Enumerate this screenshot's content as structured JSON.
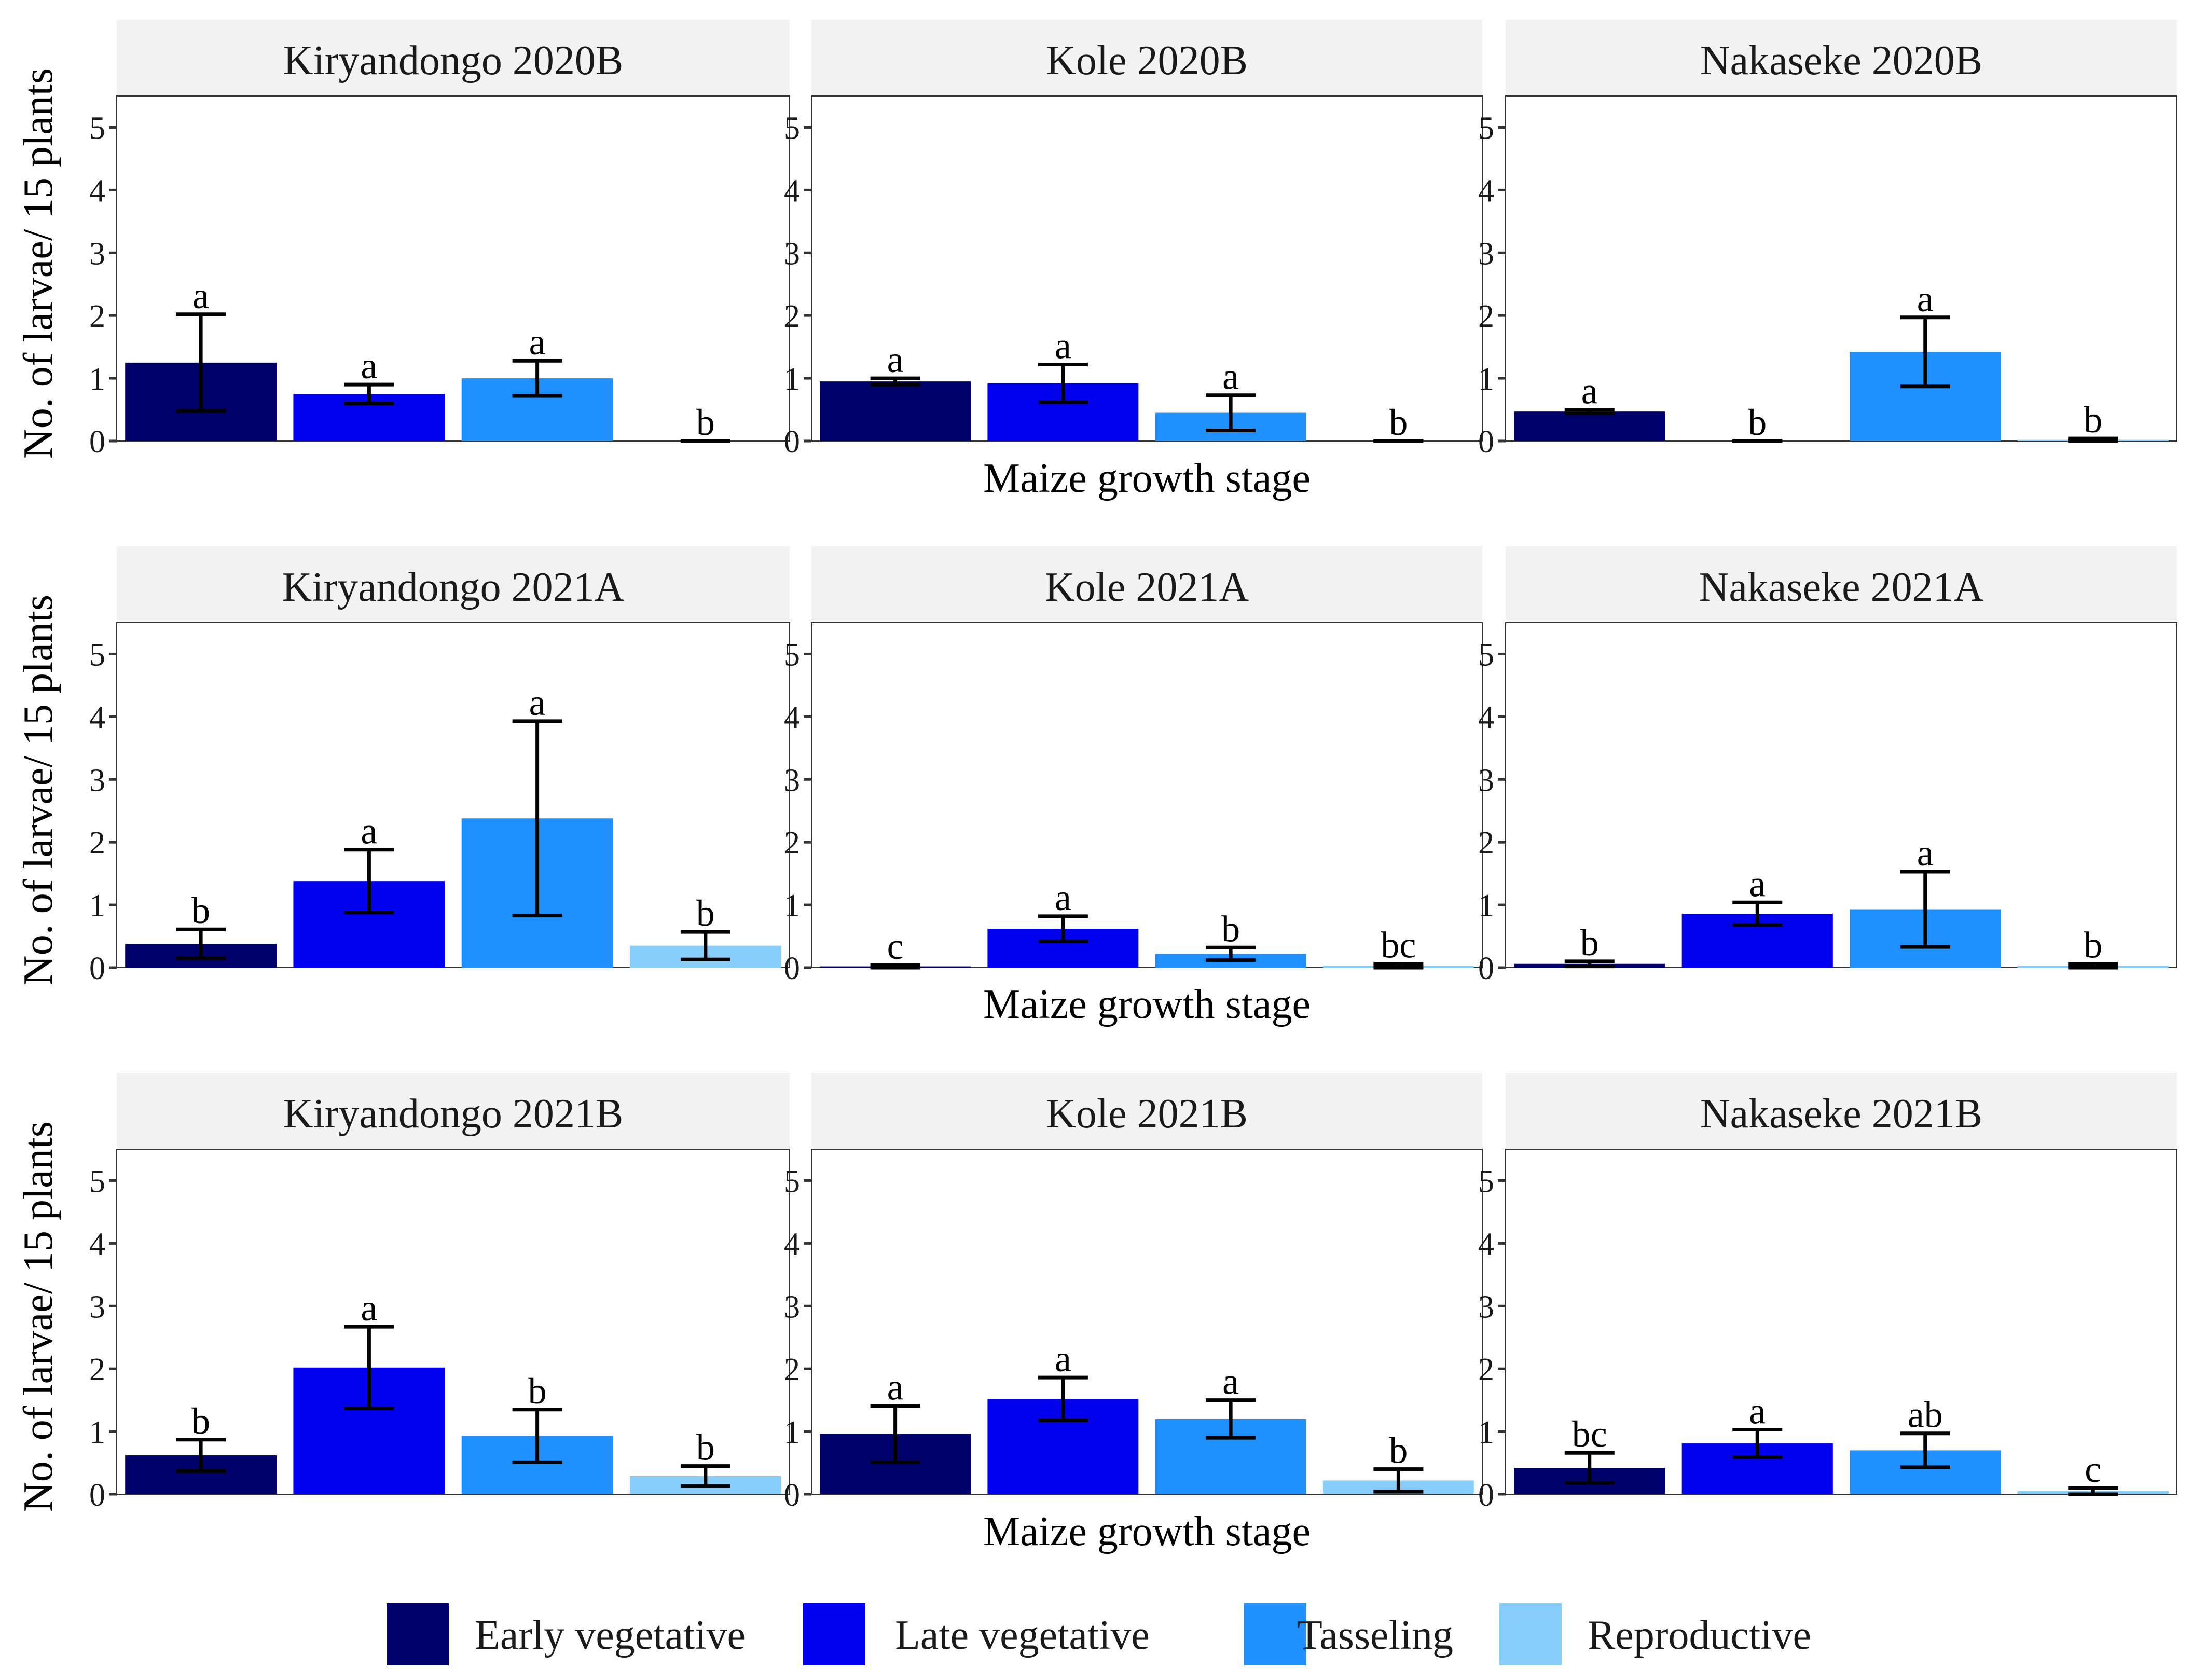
{
  "chart_data": {
    "type": "bar",
    "ylabel": "No. of larvae/ 15 plants",
    "xlabel": "Maize growth stage",
    "ylim": [
      0,
      5.5
    ],
    "yticks": [
      "0",
      "1",
      "2",
      "3",
      "4",
      "5"
    ],
    "stages": [
      "Early vegetative",
      "Late vegetative",
      "Tasseling",
      "Reproductive"
    ],
    "colors": [
      "#00006b",
      "#0000ee",
      "#1e90ff",
      "#87cefa"
    ],
    "panels": [
      {
        "title": "Kiryandongo 2020B",
        "values": [
          1.25,
          0.75,
          1.0,
          0.0
        ],
        "errors": [
          0.77,
          0.15,
          0.28,
          0.0
        ],
        "letters": [
          "a",
          "a",
          "a",
          "b"
        ]
      },
      {
        "title": "Kole 2020B",
        "values": [
          0.95,
          0.92,
          0.45,
          0.0
        ],
        "errors": [
          0.05,
          0.3,
          0.28,
          0.0
        ],
        "letters": [
          "a",
          "a",
          "a",
          "b"
        ]
      },
      {
        "title": "Nakaseke 2020B",
        "values": [
          0.47,
          0.0,
          1.42,
          0.02
        ],
        "errors": [
          0.03,
          0.0,
          0.55,
          0.02
        ],
        "letters": [
          "a",
          "b",
          "a",
          "b"
        ]
      },
      {
        "title": "Kiryandongo 2021A",
        "values": [
          0.38,
          1.38,
          2.38,
          0.35
        ],
        "errors": [
          0.23,
          0.5,
          1.55,
          0.22
        ],
        "letters": [
          "b",
          "a",
          "a",
          "b"
        ]
      },
      {
        "title": "Kole 2021A",
        "values": [
          0.02,
          0.62,
          0.22,
          0.03
        ],
        "errors": [
          0.02,
          0.2,
          0.1,
          0.03
        ],
        "letters": [
          "c",
          "a",
          "b",
          "bc"
        ]
      },
      {
        "title": "Nakaseke 2021A",
        "values": [
          0.06,
          0.86,
          0.93,
          0.03
        ],
        "errors": [
          0.04,
          0.18,
          0.6,
          0.03
        ],
        "letters": [
          "b",
          "a",
          "a",
          "b"
        ]
      },
      {
        "title": "Kiryandongo 2021B",
        "values": [
          0.62,
          2.02,
          0.93,
          0.29
        ],
        "errors": [
          0.25,
          0.65,
          0.42,
          0.16
        ],
        "letters": [
          "b",
          "a",
          "b",
          "b"
        ]
      },
      {
        "title": "Kole 2021B",
        "values": [
          0.96,
          1.52,
          1.2,
          0.22
        ],
        "errors": [
          0.45,
          0.34,
          0.3,
          0.18
        ],
        "letters": [
          "a",
          "a",
          "a",
          "b"
        ]
      },
      {
        "title": "Nakaseke 2021B",
        "values": [
          0.42,
          0.81,
          0.7,
          0.05
        ],
        "errors": [
          0.24,
          0.22,
          0.27,
          0.05
        ],
        "letters": [
          "bc",
          "a",
          "ab",
          "c"
        ]
      }
    ]
  }
}
